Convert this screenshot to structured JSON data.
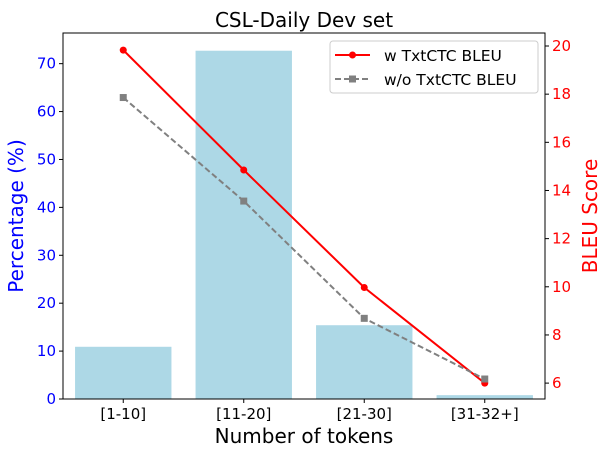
{
  "chart_data": {
    "type": "bar+line",
    "title": "CSL-Daily Dev set",
    "xlabel": "Number of tokens",
    "ylabel_left": "Percentage (%)",
    "ylabel_right": "BLEU Score",
    "categories": [
      "[1-10]",
      "[11-20]",
      "[21-30]",
      "[31-32+]"
    ],
    "bars": {
      "axis": "left",
      "values": [
        10.9,
        72.7,
        15.4,
        0.8
      ],
      "color": "#add8e6"
    },
    "series": [
      {
        "name": "w TxtCTC BLEU",
        "axis": "right",
        "values": [
          19.83,
          14.85,
          9.97,
          6.0
        ],
        "color": "#ff0000",
        "marker": "circle",
        "linestyle": "solid"
      },
      {
        "name": "w/o TxtCTC BLEU",
        "axis": "right",
        "values": [
          17.86,
          13.56,
          8.69,
          6.17
        ],
        "color": "#808080",
        "marker": "square",
        "linestyle": "dashed"
      }
    ],
    "ylim_left": [
      0,
      76.4
    ],
    "yticks_left": [
      "0",
      "10",
      "20",
      "30",
      "40",
      "50",
      "60",
      "70"
    ],
    "ylim_right": [
      5.34,
      20.54
    ],
    "yticks_right": [
      "6",
      "8",
      "10",
      "12",
      "14",
      "16",
      "18",
      "20"
    ],
    "left_axis_color": "#0000ff",
    "right_axis_color": "#ff0000",
    "grid": false,
    "legend_position": "top-right"
  }
}
